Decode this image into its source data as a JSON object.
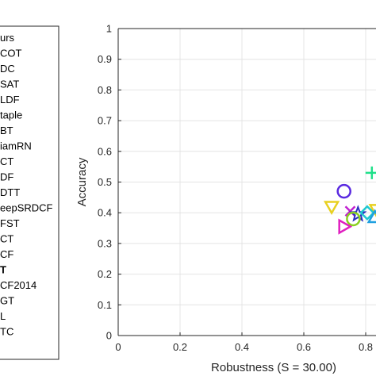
{
  "chart_data": {
    "type": "scatter",
    "xlabel": "Robustness (S = 30.00)",
    "ylabel": "Accuracy",
    "xlim": [
      0,
      0.85
    ],
    "ylim": [
      0,
      1
    ],
    "xticks": [
      "0",
      "0.2",
      "0.4",
      "0.6",
      "0.8"
    ],
    "xtick_values": [
      0,
      0.2,
      0.4,
      0.6,
      0.8
    ],
    "yticks": [
      "0",
      "0.1",
      "0.2",
      "0.3",
      "0.4",
      "0.5",
      "0.6",
      "0.7",
      "0.8",
      "0.9",
      "1"
    ],
    "ytick_values": [
      0,
      0.1,
      0.2,
      0.3,
      0.4,
      0.5,
      0.6,
      0.7,
      0.8,
      0.9,
      1.0
    ],
    "grid": true,
    "legend_position": "left",
    "legend": [
      {
        "text": "urs",
        "bold": false
      },
      {
        "text": "COT",
        "bold": false
      },
      {
        "text": "DC",
        "bold": false
      },
      {
        "text": "SAT",
        "bold": false
      },
      {
        "text": "LDF",
        "bold": false
      },
      {
        "text": "taple",
        "bold": false
      },
      {
        "text": "BT",
        "bold": false
      },
      {
        "text": "iamRN",
        "bold": false
      },
      {
        "text": "CT",
        "bold": false
      },
      {
        "text": "DF",
        "bold": false
      },
      {
        "text": "DTT",
        "bold": false
      },
      {
        "text": "eepSRDCF",
        "bold": false
      },
      {
        "text": "FST",
        "bold": false
      },
      {
        "text": "CT",
        "bold": false
      },
      {
        "text": "CF",
        "bold": false
      },
      {
        "text": "T",
        "bold": true
      },
      {
        "text": "CF2014",
        "bold": false
      },
      {
        "text": "GT",
        "bold": false
      },
      {
        "text": "L",
        "bold": false
      },
      {
        "text": "TC",
        "bold": false
      }
    ],
    "points": [
      {
        "marker": "plus",
        "color": "#20e08a",
        "x": 0.82,
        "y": 0.53
      },
      {
        "marker": "circle",
        "color": "#5a2ae0",
        "x": 0.73,
        "y": 0.47
      },
      {
        "marker": "triangle-down",
        "color": "#e8d020",
        "x": 0.69,
        "y": 0.42
      },
      {
        "marker": "triangle-down",
        "color": "#e8d020",
        "x": 0.835,
        "y": 0.41
      },
      {
        "marker": "x",
        "color": "#c020d0",
        "x": 0.75,
        "y": 0.405
      },
      {
        "marker": "star",
        "color": "#2a30c0",
        "x": 0.775,
        "y": 0.395
      },
      {
        "marker": "diamond",
        "color": "#20c8d0",
        "x": 0.805,
        "y": 0.4
      },
      {
        "marker": "circle",
        "color": "#8ad020",
        "x": 0.76,
        "y": 0.38
      },
      {
        "marker": "triangle-right",
        "color": "#e020c0",
        "x": 0.73,
        "y": 0.355
      },
      {
        "marker": "triangle-up",
        "color": "#20a0e0",
        "x": 0.83,
        "y": 0.385
      }
    ]
  }
}
